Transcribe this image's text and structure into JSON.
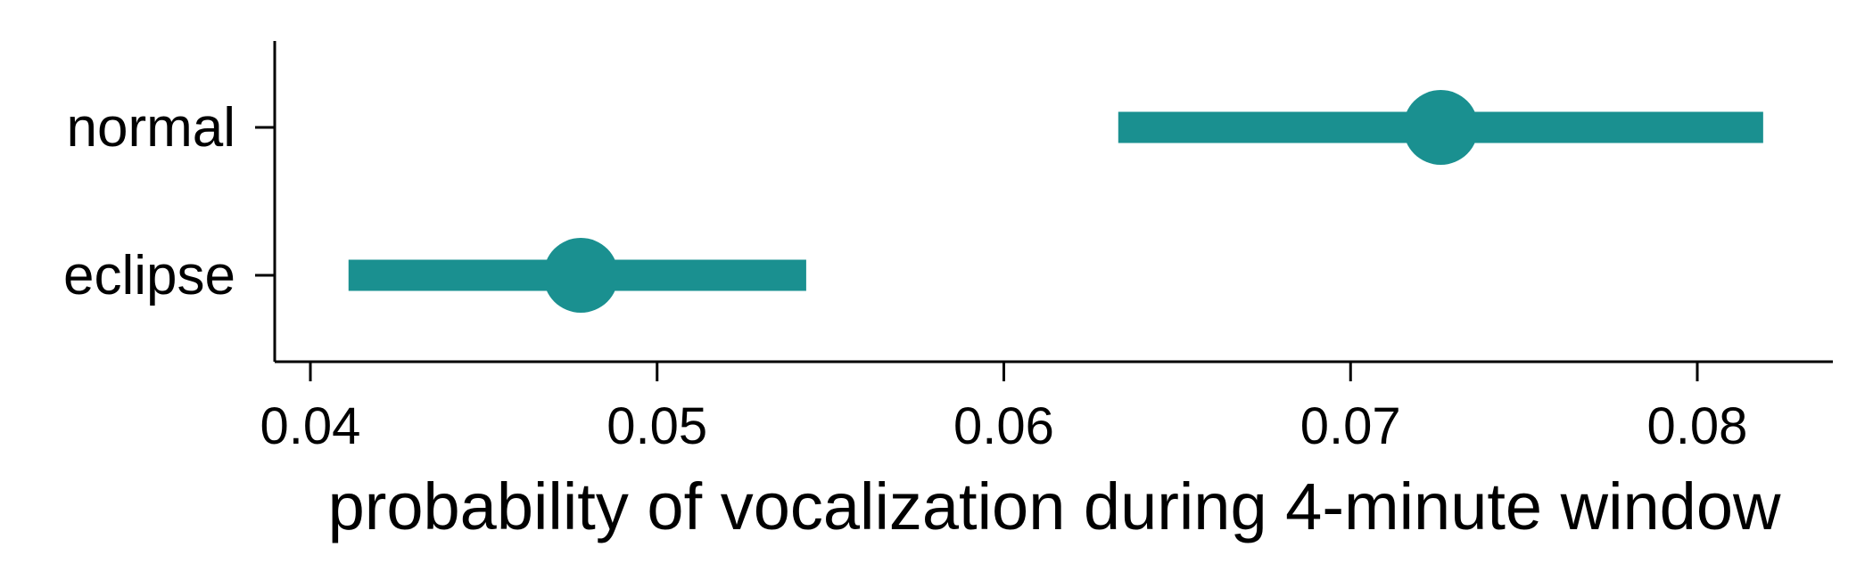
{
  "chart_data": {
    "type": "dot-interval",
    "title": "",
    "xlabel": "probability of vocalization during 4-minute window",
    "ylabel": "",
    "xlim": [
      0.039,
      0.084
    ],
    "xticks": [
      0.04,
      0.05,
      0.06,
      0.07,
      0.08
    ],
    "xtick_labels": [
      "0.04",
      "0.05",
      "0.06",
      "0.07",
      "0.08"
    ],
    "grid": false,
    "color": "#1a9090",
    "categories": [
      "normal",
      "eclipse"
    ],
    "points": [
      {
        "category": "normal",
        "estimate": 0.0726,
        "lower": 0.0633,
        "upper": 0.0819
      },
      {
        "category": "eclipse",
        "estimate": 0.0478,
        "lower": 0.0411,
        "upper": 0.0543
      }
    ]
  }
}
